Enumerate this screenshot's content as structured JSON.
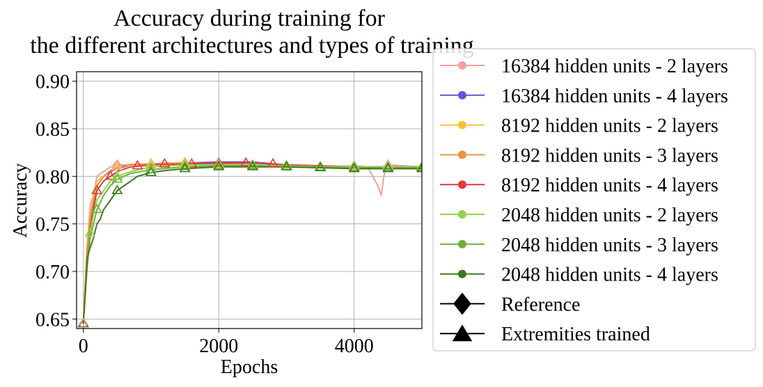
{
  "chart_data": {
    "type": "line",
    "title": [
      "Accuracy during training for",
      "the different architectures and types of training"
    ],
    "xlabel": "Epochs",
    "ylabel": "Accuracy",
    "xlim": [
      -100,
      5000
    ],
    "ylim": [
      0.64,
      0.91
    ],
    "xticks": [
      0,
      2000,
      4000
    ],
    "xtick_labels": [
      "0",
      "2000",
      "4000"
    ],
    "yticks": [
      0.65,
      0.7,
      0.75,
      0.8,
      0.85,
      0.9
    ],
    "ytick_labels": [
      "0.65",
      "0.70",
      "0.75",
      "0.80",
      "0.85",
      "0.90"
    ],
    "grid": true,
    "legend_position": "right",
    "series": [
      {
        "name": "16384 hidden units - 2 layers",
        "color": "#f4a09c",
        "x": [
          0,
          50,
          100,
          150,
          200,
          300,
          400,
          500,
          600,
          800,
          1000,
          1200,
          1500,
          2000,
          2500,
          3000,
          3500,
          4000,
          4200,
          4350,
          4400,
          4450,
          4500,
          5000
        ],
        "y": [
          0.645,
          0.72,
          0.77,
          0.78,
          0.8,
          0.805,
          0.81,
          0.812,
          0.812,
          0.813,
          0.813,
          0.814,
          0.814,
          0.812,
          0.811,
          0.811,
          0.81,
          0.811,
          0.81,
          0.79,
          0.78,
          0.805,
          0.812,
          0.81
        ]
      },
      {
        "name": "16384 hidden units - 4 layers",
        "color": "#6f4fd6",
        "x": [
          0,
          50,
          100,
          150,
          200,
          300,
          400,
          500,
          700,
          1000,
          1500,
          2000,
          2500,
          3000,
          3500,
          4000,
          4500,
          5000
        ],
        "y": [
          0.645,
          0.71,
          0.75,
          0.77,
          0.79,
          0.8,
          0.805,
          0.808,
          0.812,
          0.813,
          0.814,
          0.815,
          0.815,
          0.812,
          0.811,
          0.81,
          0.81,
          0.81
        ]
      },
      {
        "name": "8192 hidden units - 2 layers",
        "color": "#f7c23a",
        "x": [
          0,
          50,
          100,
          150,
          200,
          300,
          400,
          500,
          700,
          1000,
          1500,
          2000,
          2500,
          3000,
          3500,
          4000,
          4500,
          5000
        ],
        "y": [
          0.645,
          0.72,
          0.76,
          0.78,
          0.795,
          0.8,
          0.806,
          0.81,
          0.812,
          0.813,
          0.813,
          0.812,
          0.812,
          0.811,
          0.81,
          0.81,
          0.81,
          0.81
        ]
      },
      {
        "name": "8192 hidden units - 3 layers",
        "color": "#e8963a",
        "x": [
          0,
          50,
          100,
          150,
          200,
          300,
          400,
          500,
          700,
          1000,
          1500,
          2000,
          2500,
          3000,
          3500,
          4000,
          4500,
          5000
        ],
        "y": [
          0.645,
          0.72,
          0.755,
          0.775,
          0.79,
          0.8,
          0.806,
          0.81,
          0.812,
          0.813,
          0.814,
          0.813,
          0.812,
          0.811,
          0.81,
          0.81,
          0.81,
          0.81
        ]
      },
      {
        "name": "8192 hidden units - 4 layers",
        "color": "#e23a36",
        "x": [
          0,
          50,
          100,
          150,
          200,
          300,
          400,
          500,
          700,
          1000,
          1500,
          2000,
          2500,
          3000,
          3500,
          4000,
          4500,
          5000
        ],
        "y": [
          0.645,
          0.7,
          0.745,
          0.765,
          0.785,
          0.795,
          0.8,
          0.805,
          0.81,
          0.812,
          0.813,
          0.814,
          0.814,
          0.812,
          0.811,
          0.81,
          0.81,
          0.81
        ]
      },
      {
        "name": "2048 hidden units - 2 layers",
        "color": "#8ed64a",
        "x": [
          0,
          50,
          100,
          150,
          200,
          300,
          400,
          500,
          700,
          1000,
          1500,
          2000,
          2500,
          3000,
          3500,
          4000,
          4500,
          5000
        ],
        "y": [
          0.645,
          0.7,
          0.74,
          0.76,
          0.775,
          0.785,
          0.795,
          0.8,
          0.805,
          0.81,
          0.812,
          0.812,
          0.812,
          0.811,
          0.81,
          0.81,
          0.81,
          0.81
        ]
      },
      {
        "name": "2048 hidden units - 3 layers",
        "color": "#6ab03a",
        "x": [
          0,
          50,
          100,
          150,
          200,
          300,
          400,
          500,
          700,
          1000,
          1500,
          2000,
          2500,
          3000,
          3500,
          4000,
          4500,
          5000
        ],
        "y": [
          0.645,
          0.7,
          0.735,
          0.75,
          0.765,
          0.78,
          0.79,
          0.797,
          0.803,
          0.807,
          0.81,
          0.811,
          0.811,
          0.81,
          0.809,
          0.809,
          0.809,
          0.809
        ]
      },
      {
        "name": "2048 hidden units - 4 layers",
        "color": "#3a7a1e",
        "x": [
          0,
          30,
          60,
          100,
          150,
          200,
          250,
          300,
          400,
          500,
          600,
          700,
          800,
          1000,
          1200,
          1500,
          2000,
          2500,
          3000,
          3500,
          4000,
          4500,
          5000
        ],
        "y": [
          0.645,
          0.68,
          0.715,
          0.725,
          0.735,
          0.75,
          0.755,
          0.765,
          0.775,
          0.785,
          0.79,
          0.795,
          0.8,
          0.804,
          0.806,
          0.808,
          0.81,
          0.81,
          0.81,
          0.809,
          0.808,
          0.808,
          0.808
        ]
      }
    ],
    "extremities_markers": [
      {
        "series": 0,
        "x": [
          0,
          500,
          1000,
          1500,
          2000,
          2500,
          3000,
          3500,
          4000,
          4500,
          5000
        ],
        "y": [
          0.645,
          0.812,
          0.813,
          0.814,
          0.812,
          0.811,
          0.811,
          0.81,
          0.811,
          0.812,
          0.81
        ]
      },
      {
        "series": 4,
        "x": [
          0,
          200,
          400,
          800,
          1200,
          1600,
          2000,
          2400,
          2800
        ],
        "y": [
          0.645,
          0.785,
          0.8,
          0.811,
          0.813,
          0.813,
          0.814,
          0.814,
          0.813
        ]
      },
      {
        "series": 3,
        "x": [
          0,
          500,
          1000,
          1500,
          2000,
          2500,
          3000,
          3500,
          4000,
          4500,
          5000
        ],
        "y": [
          0.645,
          0.81,
          0.813,
          0.814,
          0.813,
          0.812,
          0.811,
          0.81,
          0.81,
          0.81,
          0.81
        ]
      },
      {
        "series": 2,
        "x": [
          500,
          1000,
          1500,
          2000,
          2500,
          3000,
          3500,
          4000,
          4500,
          5000
        ],
        "y": [
          0.81,
          0.813,
          0.813,
          0.812,
          0.812,
          0.811,
          0.81,
          0.81,
          0.81,
          0.81
        ]
      },
      {
        "series": 5,
        "x": [
          100,
          500,
          1000,
          1500,
          2000,
          2500,
          3000,
          3500,
          4000,
          4500,
          5000
        ],
        "y": [
          0.74,
          0.8,
          0.81,
          0.812,
          0.812,
          0.812,
          0.811,
          0.81,
          0.81,
          0.81,
          0.81
        ]
      },
      {
        "series": 6,
        "x": [
          200,
          500,
          1000,
          1500,
          2000,
          2500,
          3000,
          3500,
          4000,
          4500,
          5000
        ],
        "y": [
          0.765,
          0.797,
          0.807,
          0.81,
          0.811,
          0.811,
          0.81,
          0.809,
          0.809,
          0.809,
          0.809
        ]
      },
      {
        "series": 7,
        "x": [
          0,
          500,
          1000,
          1500,
          2000,
          2500,
          3000,
          3500,
          4000,
          4500,
          5000
        ],
        "y": [
          0.645,
          0.785,
          0.804,
          0.808,
          0.81,
          0.81,
          0.81,
          0.809,
          0.808,
          0.808,
          0.808
        ]
      }
    ],
    "reference_markers": [
      {
        "series": 0,
        "x": [
          0,
          500
        ],
        "y": [
          0.645,
          0.812
        ]
      }
    ],
    "legend": [
      {
        "label": "16384 hidden units - 2 layers",
        "color": "#f4a09c",
        "marker": "circle"
      },
      {
        "label": "16384 hidden units - 4 layers",
        "color": "#6f4fd6",
        "marker": "circle"
      },
      {
        "label": "8192 hidden units - 2 layers",
        "color": "#f7c23a",
        "marker": "circle"
      },
      {
        "label": "8192 hidden units - 3 layers",
        "color": "#e8963a",
        "marker": "circle"
      },
      {
        "label": "8192 hidden units - 4 layers",
        "color": "#e23a36",
        "marker": "circle"
      },
      {
        "label": "2048 hidden units - 2 layers",
        "color": "#8ed64a",
        "marker": "circle"
      },
      {
        "label": "2048 hidden units - 3 layers",
        "color": "#6ab03a",
        "marker": "circle"
      },
      {
        "label": "2048 hidden units - 4 layers",
        "color": "#3a7a1e",
        "marker": "circle"
      },
      {
        "label": "Reference",
        "color": "#000000",
        "marker": "diamond"
      },
      {
        "label": "Extremities trained",
        "color": "#000000",
        "marker": "triangle"
      }
    ]
  }
}
